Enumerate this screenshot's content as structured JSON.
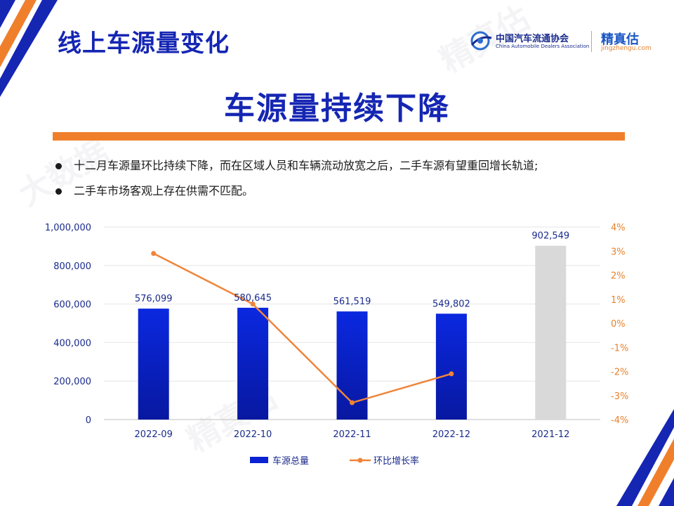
{
  "page": {
    "title": "线上车源量变化",
    "headline": "车源量持续下降",
    "bullets": [
      "十二月车源量环比持续下降，而在区域人员和车辆流动放宽之后，二手车源有望重回增长轨道;",
      "二手车市场客观上存在供需不匹配。"
    ]
  },
  "logos": {
    "cada_name": "中国汽车流通协会",
    "cada_en": "China Automobile Dealers Association",
    "jz_name": "精真估",
    "jz_url": "jingzhengu.com"
  },
  "colors": {
    "title": "#1526b3",
    "bar": "#0a22d2",
    "bar_dark": "#0a1ba8",
    "bar_last_year": "#d9d9d9",
    "line": "#f08439",
    "accent": "#f07f2c",
    "axis_left_text": "#1a2b8c",
    "axis_right_text": "#e8822e"
  },
  "chart_data": {
    "type": "bar",
    "categories": [
      "2022-09",
      "2022-10",
      "2022-11",
      "2022-12",
      "2021-12"
    ],
    "series": [
      {
        "name": "车源总量",
        "type": "bar",
        "values": [
          576099,
          580645,
          561519,
          549802,
          902549
        ],
        "labels": [
          "576,099",
          "580,645",
          "561,519",
          "549,802",
          "902,549"
        ]
      },
      {
        "name": "环比增长率",
        "type": "line",
        "values": [
          2.9,
          0.8,
          -3.3,
          -2.1,
          null
        ]
      }
    ],
    "ylim": [
      0,
      1000000
    ],
    "yticks": [
      "0",
      "200,000",
      "400,000",
      "600,000",
      "800,000",
      "1,000,000"
    ],
    "y2lim": [
      -4,
      4
    ],
    "y2ticks": [
      "-4%",
      "-3%",
      "-2%",
      "-1%",
      "0%",
      "1%",
      "2%",
      "3%",
      "4%"
    ],
    "grid": true,
    "legend": "bottom"
  }
}
